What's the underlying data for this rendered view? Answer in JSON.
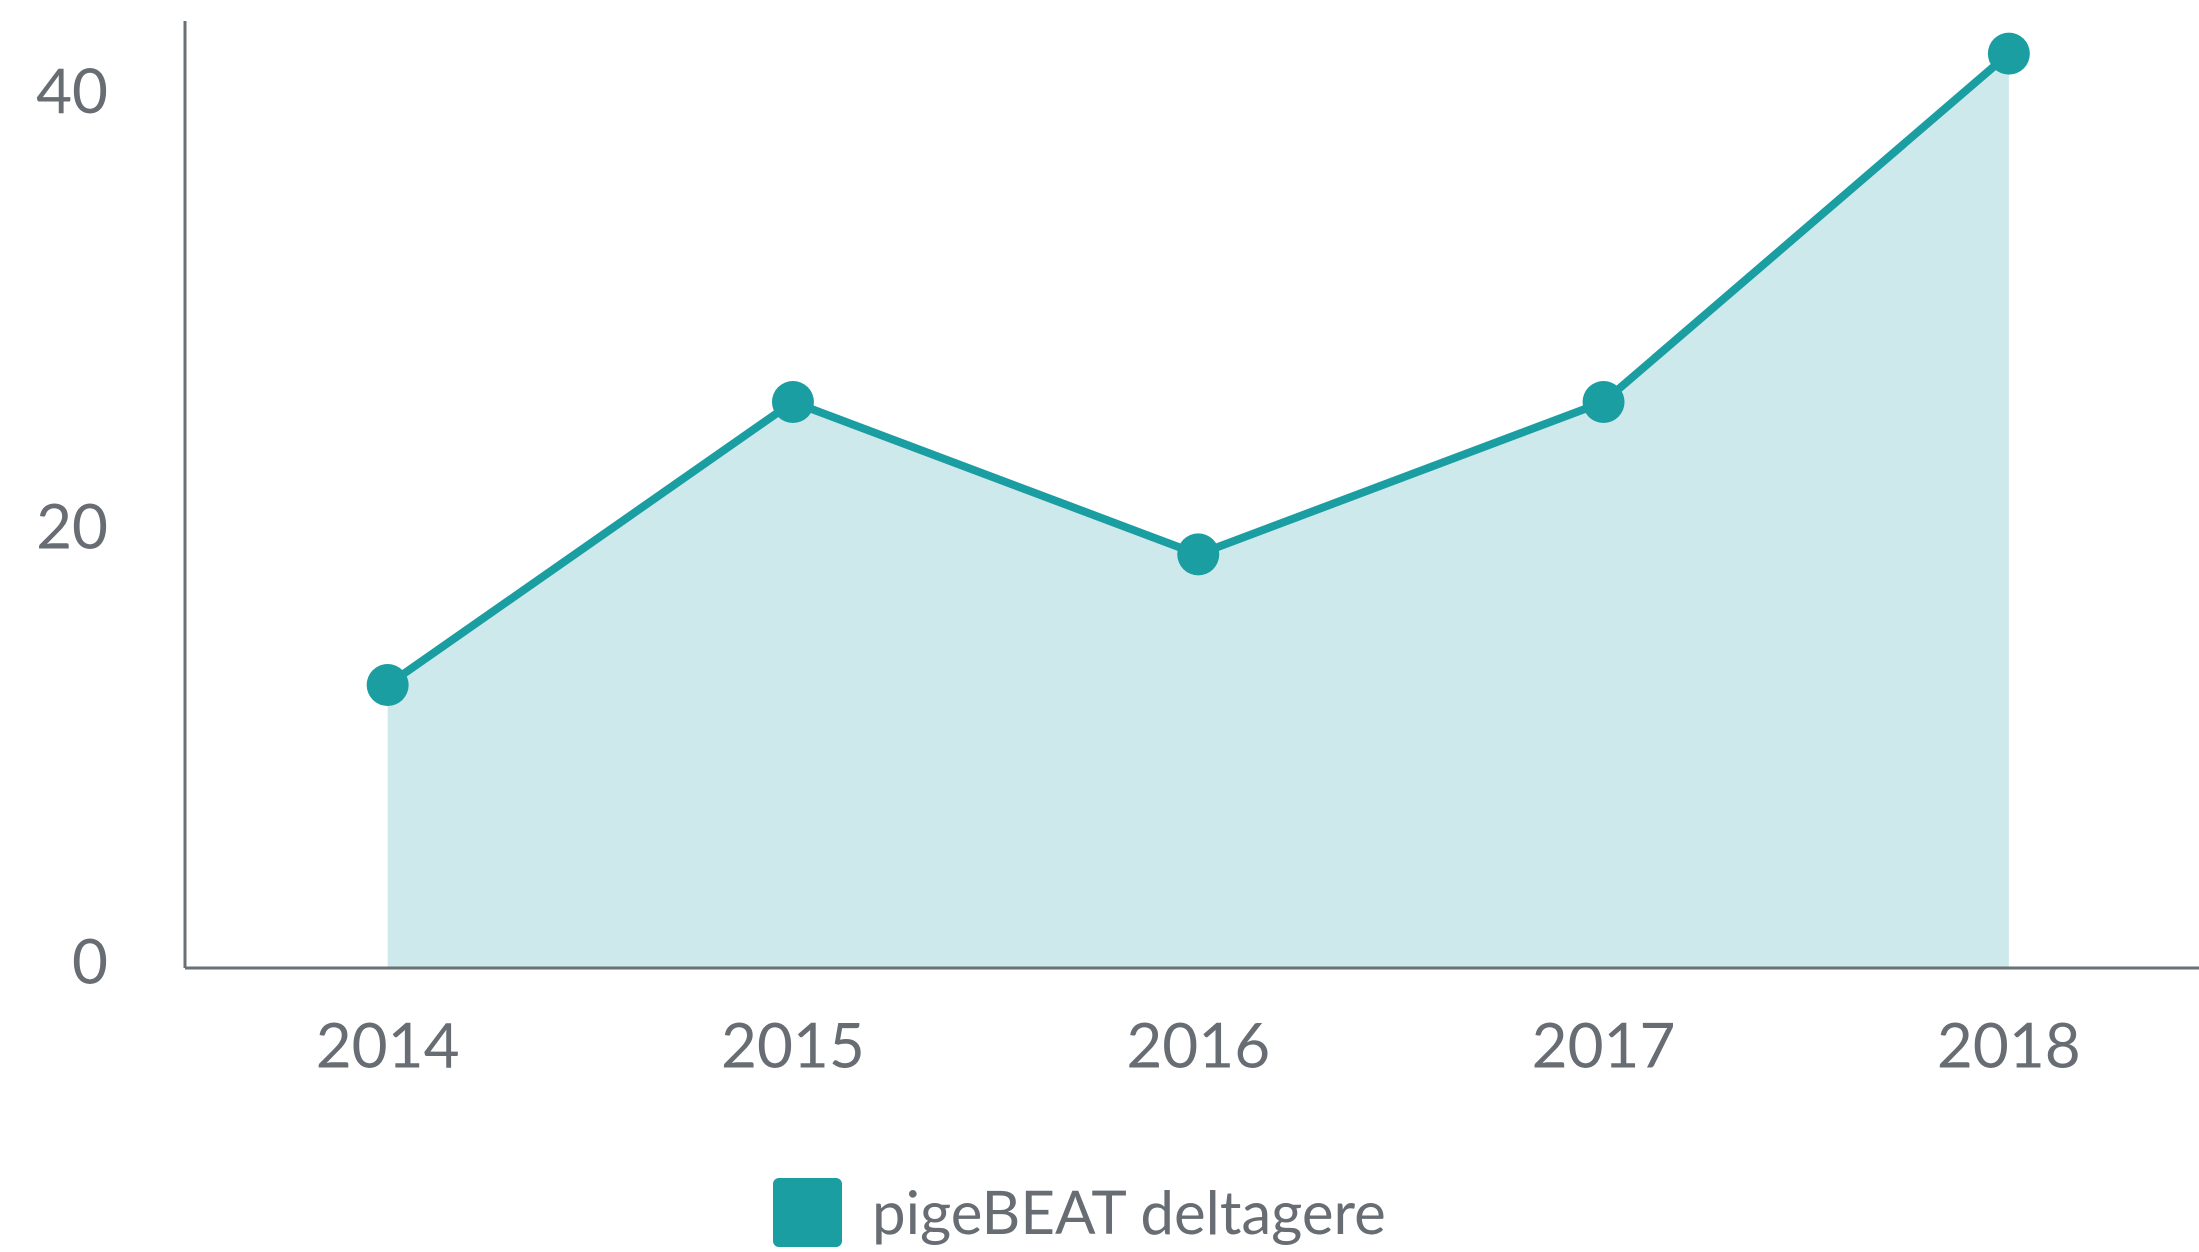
{
  "chart_data": {
    "type": "area",
    "categories": [
      "2014",
      "2015",
      "2016",
      "2017",
      "2018"
    ],
    "series": [
      {
        "name": "pigeBEAT deltagere",
        "color": "#1a9ea1",
        "fill": "#cde9ec",
        "values": [
          13,
          26,
          19,
          26,
          42
        ]
      }
    ],
    "ylim": [
      0,
      43.5
    ],
    "yticks": [
      0,
      20,
      40
    ],
    "grid": false,
    "legend": "bottom"
  }
}
